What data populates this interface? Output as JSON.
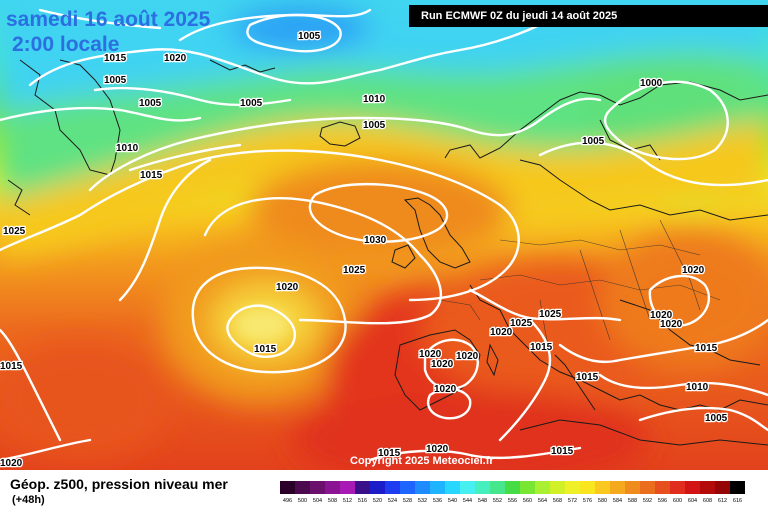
{
  "header": {
    "date": "samedi 16 août 2025",
    "time": "2:00 locale",
    "run": "Run ECMWF 0Z du jeudi 14 août 2025"
  },
  "map": {
    "copyright": "Copyright 2025 Meteociel.fr",
    "isobar_labels": [
      "1005",
      "1020",
      "1015",
      "1005",
      "1005",
      "1005",
      "1010",
      "1015",
      "1000",
      "1005",
      "1005",
      "1010",
      "1025",
      "1030",
      "1025",
      "1020",
      "1020",
      "1015",
      "1020",
      "1025",
      "1025",
      "1020",
      "1020",
      "1020",
      "1015",
      "1015",
      "1015",
      "1020",
      "1010",
      "1005",
      "1015",
      "1015",
      "1020",
      "1020",
      "1015"
    ]
  },
  "footer": {
    "title": "Géop. z500, pression niveau mer",
    "lead_time": "(+48h)"
  },
  "legend": {
    "scale_labels": [
      "496",
      "500",
      "504",
      "508",
      "512",
      "516",
      "520",
      "524",
      "528",
      "532",
      "536",
      "540",
      "544",
      "548",
      "552",
      "556",
      "560",
      "564",
      "568",
      "572",
      "576",
      "580",
      "584",
      "588",
      "592",
      "596",
      "600",
      "604",
      "608",
      "612",
      "616"
    ],
    "colors": [
      "#2a0028",
      "#4b0a4d",
      "#6c106e",
      "#8a1491",
      "#a81ab4",
      "#3a0f8a",
      "#1c1cc8",
      "#1e3cf0",
      "#1e64ff",
      "#1e8cff",
      "#1eb4ff",
      "#28d7ff",
      "#46f0f0",
      "#46f0be",
      "#46e68c",
      "#46dc46",
      "#78e632",
      "#aaf032",
      "#d2f028",
      "#f0f028",
      "#fae61e",
      "#fac81e",
      "#f5aa1e",
      "#f08c1e",
      "#eb6e1e",
      "#e6501e",
      "#e12d1e",
      "#d21414",
      "#b40a0a",
      "#960505",
      "#000000"
    ]
  }
}
